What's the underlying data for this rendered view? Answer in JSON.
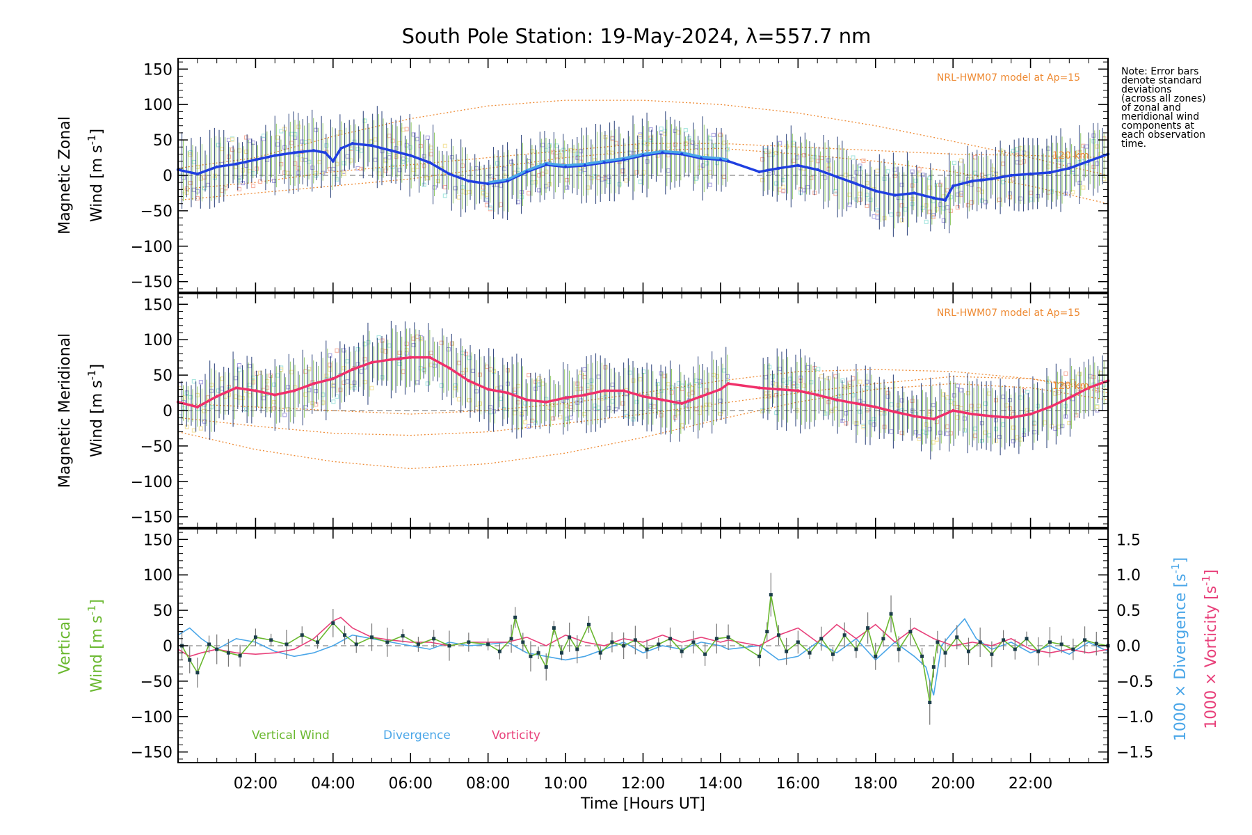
{
  "title": "South Pole Station: 19-May-2024, λ=557.7 nm",
  "note": [
    "Note: Error bars",
    "denote standard",
    "deviations",
    "(across all zones)",
    "of zonal and",
    "meridional wind",
    "components at",
    "each observation",
    "time."
  ],
  "colors": {
    "zonal": "#1f3fe0",
    "zonal_light": "#4aa6e8",
    "meridional": "#f0306a",
    "model": "#ee8a33",
    "vertical": "#6ab82f",
    "divergence": "#4aa6e8",
    "vorticity": "#e8407a",
    "zone_a": "#aaa3e0",
    "zone_b": "#f6b2a2",
    "zone_c": "#a8e6e0",
    "zone_d": "#f4e3a0",
    "errbar": "#17306e"
  },
  "chart_data": [
    {
      "id": "zonal",
      "type": "line",
      "ylabel_line1": "Magnetic Zonal",
      "ylabel_line2": "Wind [m s",
      "ylabel_sup": "-1",
      "ylabel_close": "]",
      "model_label": "NRL-HWM07 model at Ap=15",
      "model_marker": "120 km",
      "xlim": [
        0,
        24
      ],
      "ylim": [
        -165,
        165
      ],
      "yticks": [
        -150,
        -100,
        -50,
        0,
        50,
        100,
        150
      ],
      "data_gap": [
        14.2,
        15.0
      ],
      "series": [
        {
          "name": "Zonal wind",
          "x": [
            0,
            0.5,
            1.0,
            1.5,
            2.0,
            2.5,
            3.0,
            3.5,
            3.8,
            4.0,
            4.2,
            4.5,
            5.0,
            5.5,
            6.0,
            6.5,
            7.0,
            7.5,
            8.0,
            8.5,
            9.0,
            9.5,
            10.0,
            10.5,
            11.0,
            11.5,
            12.0,
            12.5,
            13.0,
            13.5,
            14.0,
            14.2,
            15.0,
            15.5,
            16.0,
            16.5,
            17.0,
            17.5,
            18.0,
            18.5,
            19.0,
            19.5,
            19.8,
            20.0,
            20.5,
            21.0,
            21.5,
            22.0,
            22.5,
            23.0,
            23.5,
            24.0
          ],
          "y": [
            8,
            2,
            12,
            16,
            22,
            28,
            32,
            35,
            32,
            20,
            38,
            45,
            42,
            35,
            28,
            18,
            2,
            -8,
            -12,
            -8,
            5,
            15,
            12,
            14,
            18,
            22,
            28,
            32,
            30,
            24,
            22,
            20,
            5,
            10,
            14,
            8,
            -2,
            -12,
            -22,
            -28,
            -25,
            -32,
            -35,
            -15,
            -8,
            -5,
            0,
            2,
            4,
            10,
            20,
            30
          ]
        }
      ],
      "model_curves": [
        {
          "x": [
            0,
            2,
            4,
            6,
            8,
            10,
            12,
            14,
            16,
            18,
            20,
            22,
            24
          ],
          "y": [
            10,
            25,
            55,
            80,
            98,
            106,
            106,
            100,
            88,
            70,
            48,
            25,
            0
          ]
        },
        {
          "x": [
            0,
            2,
            4,
            6,
            8,
            10,
            12,
            14,
            16,
            18,
            20,
            22,
            24
          ],
          "y": [
            -20,
            -10,
            5,
            15,
            25,
            35,
            45,
            45,
            40,
            35,
            30,
            28,
            25
          ]
        },
        {
          "x": [
            0,
            2,
            4,
            6,
            8,
            10,
            12,
            14,
            16,
            18,
            20,
            22,
            24
          ],
          "y": [
            -35,
            -25,
            -15,
            -5,
            10,
            25,
            35,
            38,
            30,
            20,
            5,
            -15,
            -40
          ]
        }
      ]
    },
    {
      "id": "meridional",
      "type": "line",
      "ylabel_line1": "Magnetic Meridional",
      "ylabel_line2": "Wind [m s",
      "ylabel_sup": "-1",
      "ylabel_close": "]",
      "model_label": "NRL-HWM07 model at Ap=15",
      "model_marker": "120 km",
      "xlim": [
        0,
        24
      ],
      "ylim": [
        -165,
        165
      ],
      "yticks": [
        -150,
        -100,
        -50,
        0,
        50,
        100,
        150
      ],
      "data_gap": [
        14.2,
        15.0
      ],
      "series": [
        {
          "name": "Meridional wind",
          "x": [
            0,
            0.5,
            1.0,
            1.5,
            2.0,
            2.5,
            3.0,
            3.5,
            4.0,
            4.5,
            5.0,
            5.5,
            6.0,
            6.5,
            7.0,
            7.5,
            8.0,
            8.5,
            9.0,
            9.5,
            10.0,
            10.5,
            11.0,
            11.5,
            12.0,
            12.5,
            13.0,
            13.5,
            14.0,
            14.2,
            15.0,
            15.5,
            16.0,
            16.5,
            17.0,
            17.5,
            18.0,
            18.5,
            19.0,
            19.5,
            20.0,
            20.5,
            21.0,
            21.5,
            22.0,
            22.5,
            23.0,
            23.5,
            24.0
          ],
          "y": [
            12,
            5,
            20,
            32,
            28,
            22,
            28,
            38,
            45,
            58,
            68,
            72,
            75,
            75,
            60,
            42,
            30,
            25,
            15,
            12,
            18,
            22,
            28,
            28,
            20,
            15,
            10,
            20,
            30,
            38,
            32,
            30,
            28,
            22,
            15,
            10,
            5,
            -2,
            -8,
            -12,
            0,
            -5,
            -8,
            -10,
            -5,
            5,
            18,
            32,
            42
          ]
        }
      ],
      "model_curves": [
        {
          "x": [
            0,
            2,
            4,
            6,
            8,
            10,
            12,
            14,
            16,
            18,
            20,
            22,
            24
          ],
          "y": [
            -30,
            -55,
            -72,
            -82,
            -75,
            -60,
            -38,
            -12,
            12,
            30,
            38,
            32,
            15
          ]
        },
        {
          "x": [
            0,
            2,
            4,
            6,
            8,
            10,
            12,
            14,
            16,
            18,
            20,
            22,
            24
          ],
          "y": [
            -10,
            -22,
            -32,
            -35,
            -30,
            -18,
            -5,
            10,
            25,
            38,
            48,
            45,
            30
          ]
        },
        {
          "x": [
            0,
            2,
            4,
            6,
            8,
            10,
            12,
            14,
            16,
            18,
            20,
            22,
            24
          ],
          "y": [
            10,
            5,
            0,
            -5,
            0,
            10,
            25,
            42,
            55,
            58,
            55,
            45,
            25
          ]
        }
      ]
    },
    {
      "id": "vertical",
      "type": "line",
      "ylabel_line1": "Vertical",
      "ylabel_line2": "Wind [m s",
      "ylabel_sup": "-1",
      "ylabel_close": "]",
      "xlabel": "Time [Hours UT]",
      "xlim": [
        0,
        24
      ],
      "ylim": [
        -165,
        165
      ],
      "yticks": [
        -150,
        -100,
        -50,
        0,
        50,
        100,
        150
      ],
      "xtick_labels": [
        "02:00",
        "04:00",
        "06:00",
        "08:00",
        "10:00",
        "12:00",
        "14:00",
        "16:00",
        "18:00",
        "20:00",
        "22:00"
      ],
      "xtick_values": [
        2,
        4,
        6,
        8,
        10,
        12,
        14,
        16,
        18,
        20,
        22
      ],
      "right_axis": {
        "ylim": [
          -1.65,
          1.65
        ],
        "ticks": [
          -1.5,
          -1.0,
          -0.5,
          0.0,
          0.5,
          1.0,
          1.5
        ],
        "tick_labels": [
          "−1.5",
          "−1.0",
          "−0.5",
          "0.0",
          "0.5",
          "1.0",
          "1.5"
        ],
        "label_div": "1000 × Divergence [s",
        "label_vor": "1000 × Vorticity [s",
        "label_sup": "-1",
        "label_close": "]"
      },
      "legend": [
        "Vertical Wind",
        "Divergence",
        "Vorticity"
      ],
      "data_gap": [
        14.2,
        15.0
      ],
      "series": [
        {
          "name": "Vertical Wind",
          "axis": "left",
          "x": [
            0.1,
            0.3,
            0.5,
            0.8,
            1.0,
            1.3,
            1.6,
            2.0,
            2.4,
            2.8,
            3.2,
            3.6,
            4.0,
            4.3,
            4.6,
            5.0,
            5.4,
            5.8,
            6.2,
            6.6,
            7.0,
            7.5,
            8.0,
            8.3,
            8.6,
            8.7,
            8.9,
            9.1,
            9.3,
            9.5,
            9.7,
            9.9,
            10.1,
            10.3,
            10.6,
            10.9,
            11.2,
            11.5,
            11.8,
            12.1,
            12.4,
            12.7,
            13.0,
            13.3,
            13.6,
            13.9,
            14.2,
            15.0,
            15.2,
            15.3,
            15.5,
            15.7,
            16.0,
            16.3,
            16.6,
            16.9,
            17.2,
            17.5,
            17.8,
            18.0,
            18.2,
            18.4,
            18.6,
            18.9,
            19.2,
            19.4,
            19.5,
            19.6,
            19.8,
            20.1,
            20.4,
            20.7,
            21.0,
            21.3,
            21.6,
            21.9,
            22.2,
            22.5,
            22.8,
            23.1,
            23.4,
            23.7,
            24.0
          ],
          "y": [
            0,
            -20,
            -38,
            2,
            -5,
            -10,
            -14,
            12,
            8,
            2,
            15,
            5,
            32,
            15,
            2,
            12,
            5,
            14,
            2,
            10,
            0,
            5,
            2,
            -8,
            10,
            40,
            5,
            -15,
            -10,
            -30,
            25,
            -10,
            12,
            -5,
            30,
            -10,
            5,
            0,
            8,
            -5,
            2,
            10,
            -8,
            5,
            -12,
            10,
            12,
            -15,
            20,
            72,
            15,
            -8,
            5,
            -10,
            10,
            -12,
            15,
            -5,
            25,
            -15,
            10,
            45,
            -5,
            20,
            -15,
            -80,
            -30,
            5,
            -10,
            12,
            -8,
            5,
            -12,
            8,
            -5,
            10,
            -8,
            5,
            2,
            -5,
            8,
            3,
            0
          ]
        },
        {
          "name": "Divergence",
          "axis": "right",
          "x": [
            0,
            0.3,
            0.6,
            1.0,
            1.5,
            2.0,
            2.5,
            3.0,
            3.5,
            4.0,
            4.5,
            5.0,
            5.5,
            6.0,
            6.5,
            7.0,
            7.5,
            8.0,
            8.5,
            9.0,
            9.5,
            10.0,
            10.5,
            11.0,
            11.5,
            12.0,
            12.5,
            13.0,
            13.5,
            14.0,
            14.2,
            15.0,
            15.5,
            16.0,
            16.5,
            17.0,
            17.5,
            18.0,
            18.5,
            19.0,
            19.3,
            19.5,
            19.7,
            20.0,
            20.3,
            20.6,
            21.0,
            21.5,
            22.0,
            22.5,
            23.0,
            23.5,
            24.0
          ],
          "y": [
            0.15,
            0.25,
            0.1,
            -0.05,
            0.1,
            0.05,
            -0.08,
            -0.15,
            -0.1,
            0.0,
            0.15,
            0.1,
            0.05,
            0.0,
            -0.05,
            0.05,
            0.0,
            0.02,
            0.05,
            -0.1,
            -0.15,
            -0.2,
            -0.15,
            -0.05,
            0.05,
            -0.1,
            0.0,
            -0.05,
            0.05,
            0.0,
            -0.05,
            0.0,
            -0.2,
            -0.15,
            0.05,
            -0.1,
            0.1,
            -0.2,
            0.05,
            -0.15,
            -0.3,
            -0.7,
            0.0,
            0.2,
            0.38,
            0.1,
            -0.05,
            0.05,
            -0.1,
            0.0,
            -0.12,
            0.05,
            -0.08
          ]
        },
        {
          "name": "Vorticity",
          "axis": "right",
          "x": [
            0,
            0.3,
            0.6,
            1.0,
            1.5,
            2.0,
            2.5,
            3.0,
            3.5,
            4.0,
            4.2,
            4.5,
            5.0,
            5.5,
            6.0,
            6.5,
            7.0,
            7.5,
            8.0,
            8.5,
            9.0,
            9.5,
            10.0,
            10.5,
            11.0,
            11.5,
            12.0,
            12.5,
            13.0,
            13.5,
            14.0,
            14.2,
            15.0,
            15.5,
            16.0,
            16.5,
            17.0,
            17.5,
            18.0,
            18.5,
            19.0,
            19.5,
            20.0,
            20.5,
            21.0,
            21.5,
            22.0,
            22.5,
            23.0,
            23.5,
            24.0
          ],
          "y": [
            -0.05,
            -0.15,
            -0.1,
            -0.05,
            -0.1,
            -0.12,
            -0.1,
            -0.05,
            0.1,
            0.35,
            0.4,
            0.25,
            0.12,
            0.08,
            0.05,
            0.05,
            0.0,
            0.05,
            0.05,
            0.05,
            0.12,
            0.0,
            0.15,
            0.05,
            0.0,
            0.1,
            0.05,
            0.15,
            0.05,
            0.12,
            0.05,
            0.08,
            0.0,
            0.15,
            0.25,
            0.05,
            0.3,
            0.1,
            0.3,
            0.05,
            0.25,
            0.1,
            0.0,
            0.05,
            0.0,
            0.1,
            -0.05,
            -0.1,
            -0.05,
            -0.1,
            -0.05
          ]
        }
      ]
    }
  ]
}
